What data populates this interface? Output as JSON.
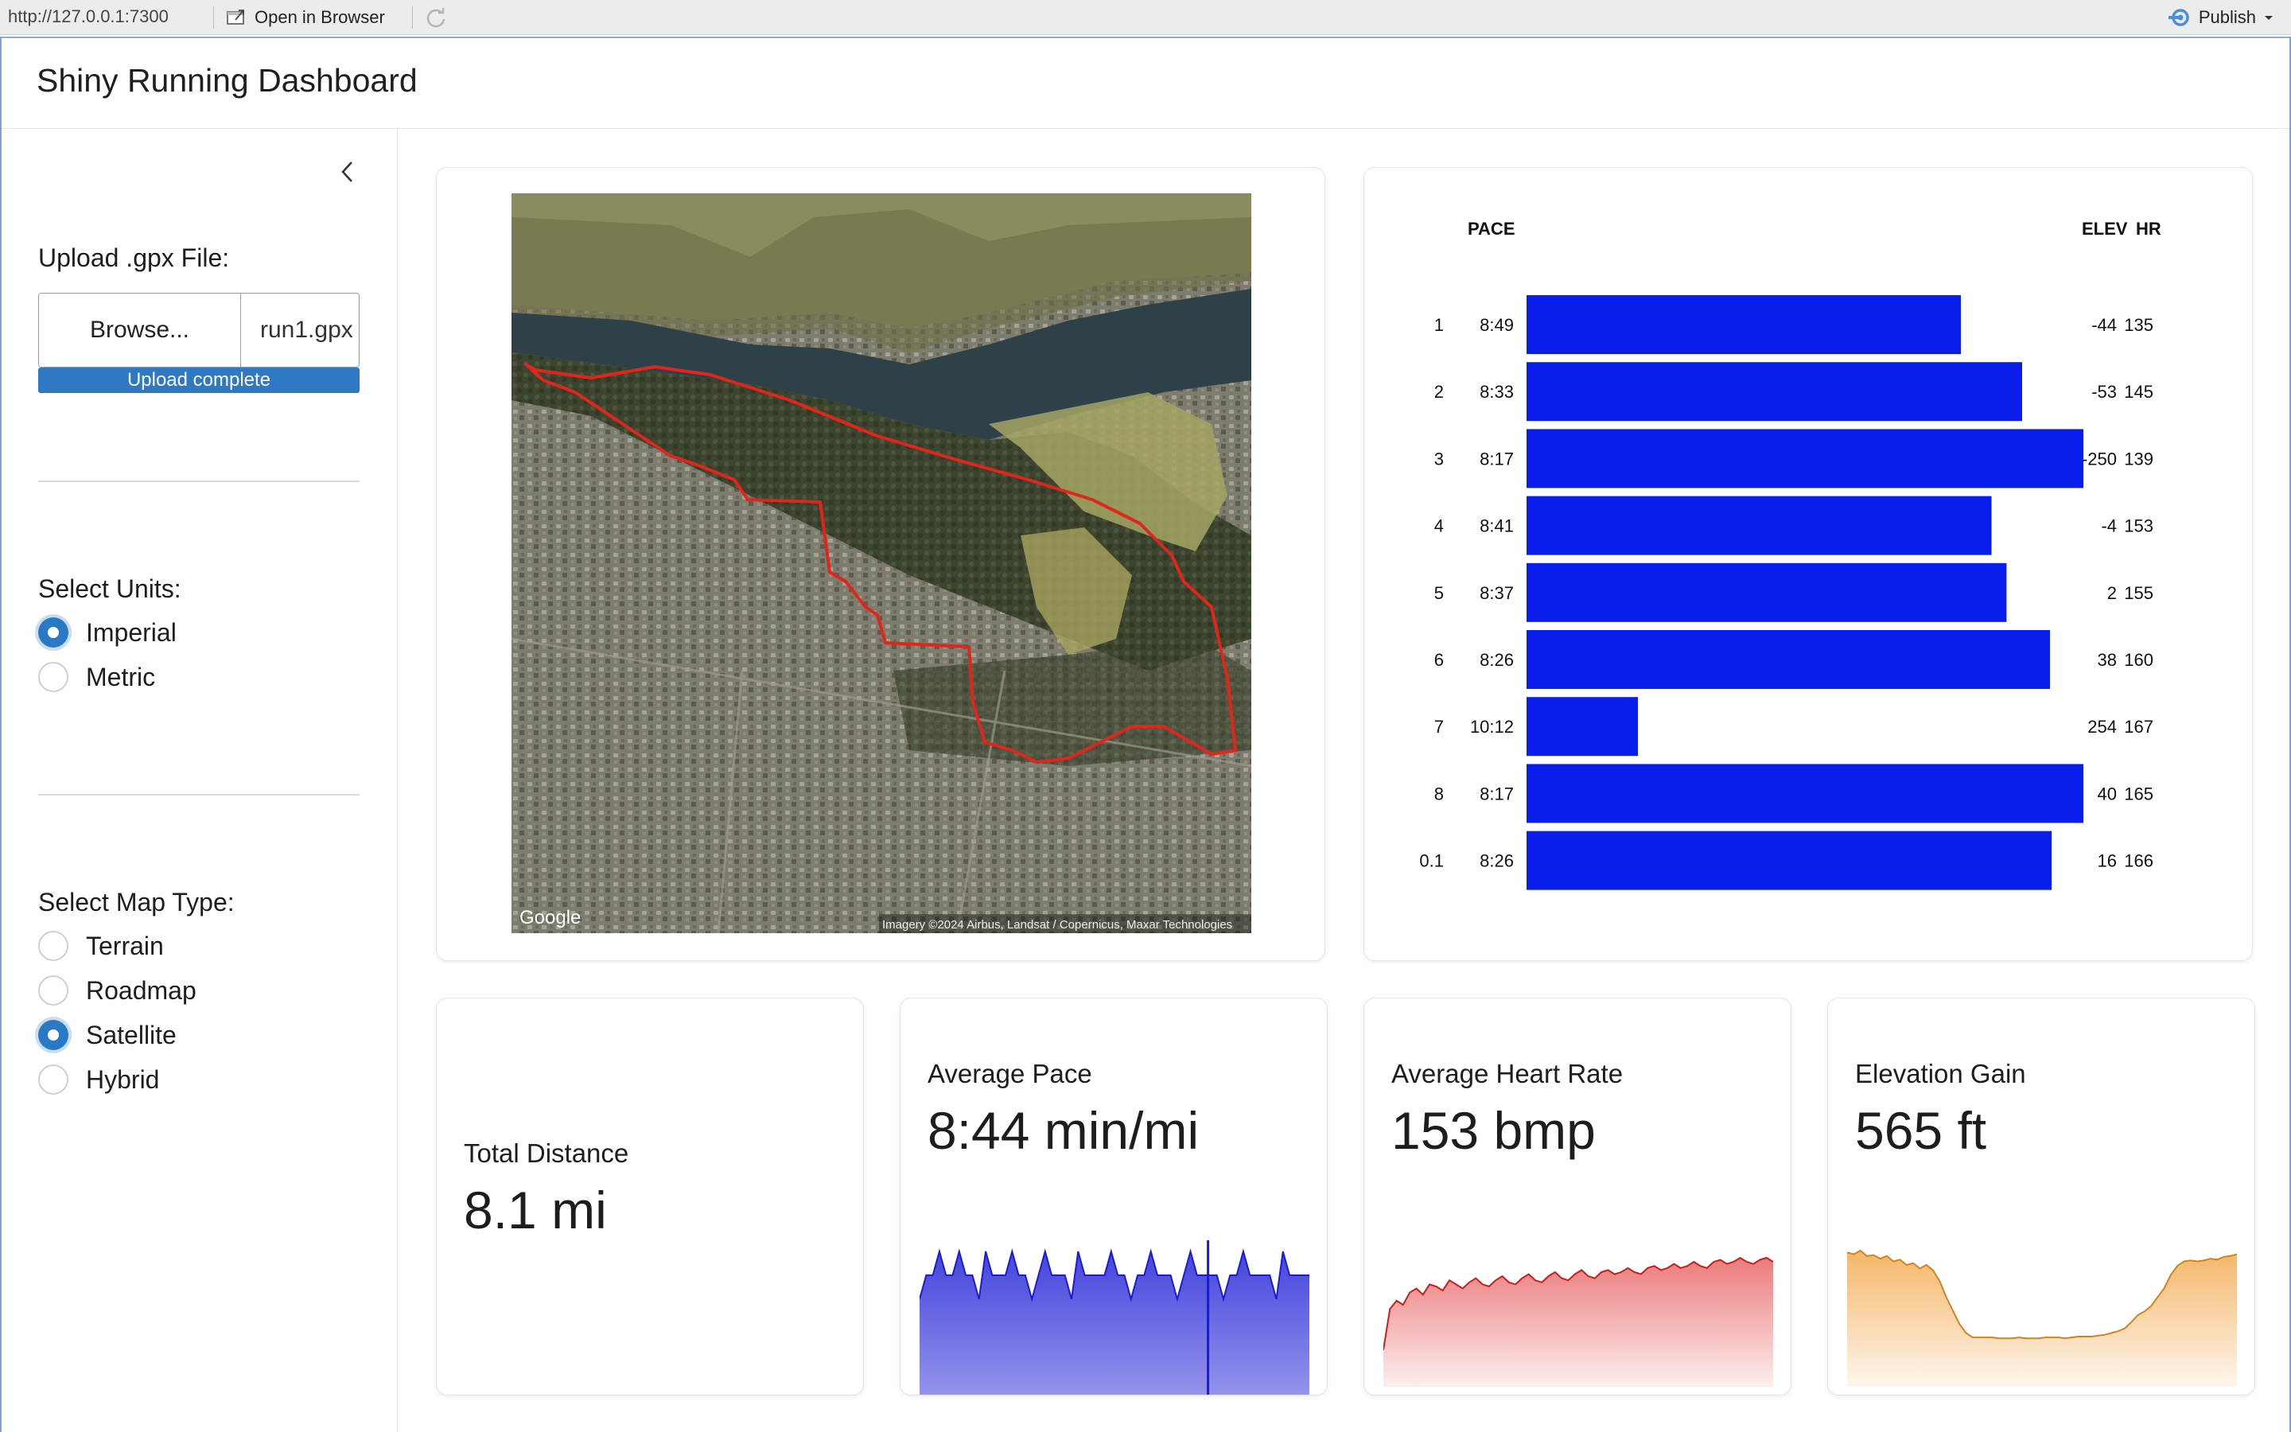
{
  "browser": {
    "url": "http://127.0.0.1:7300",
    "open_in_browser": "Open in Browser",
    "publish": "Publish"
  },
  "app": {
    "title": "Shiny Running Dashboard"
  },
  "sidebar": {
    "upload_label": "Upload .gpx File:",
    "browse_label": "Browse...",
    "file_name": "run1.gpx",
    "progress_text": "Upload complete",
    "units_label": "Select Units:",
    "units": [
      {
        "label": "Imperial",
        "selected": true
      },
      {
        "label": "Metric",
        "selected": false
      }
    ],
    "map_type_label": "Select Map Type:",
    "map_types": [
      {
        "label": "Terrain",
        "selected": false
      },
      {
        "label": "Roadmap",
        "selected": false
      },
      {
        "label": "Satellite",
        "selected": true
      },
      {
        "label": "Hybrid",
        "selected": false
      }
    ]
  },
  "map": {
    "google_logo": "Google",
    "attribution": "Imagery ©2024 Airbus, Landsat / Copernicus, Maxar Technologies",
    "route_color": "#e0261b"
  },
  "chart_data": [
    {
      "type": "bar",
      "orientation": "horizontal",
      "column_headers": {
        "pace": "PACE",
        "elev": "ELEV",
        "hr": "HR"
      },
      "categories": [
        "1",
        "2",
        "3",
        "4",
        "5",
        "6",
        "7",
        "8",
        "0.1"
      ],
      "pace_labels": [
        "8:49",
        "8:33",
        "8:17",
        "8:41",
        "8:37",
        "8:26",
        "10:12",
        "8:17",
        "8:26"
      ],
      "values": [
        0.78,
        0.89,
        1.0,
        0.835,
        0.862,
        0.94,
        0.2,
        1.0,
        0.943
      ],
      "elev": [
        "-44",
        "-53",
        "-250",
        "-4",
        "2",
        "38",
        "254",
        "40",
        "16"
      ],
      "hr": [
        "135",
        "145",
        "139",
        "153",
        "155",
        "160",
        "167",
        "165",
        "166"
      ],
      "bar_color": "#0a1eeb"
    },
    {
      "type": "area",
      "series_label": "Average Pace",
      "color": "#3b3bdb",
      "values": [
        4,
        5,
        5,
        6,
        5,
        5,
        6,
        5,
        5,
        4,
        6,
        5,
        5,
        5,
        6,
        5,
        5,
        4,
        5,
        6,
        5,
        5,
        5,
        4,
        6,
        5,
        5,
        5,
        5,
        6,
        5,
        5,
        4,
        5,
        5,
        6,
        5,
        5,
        5,
        4,
        5,
        6,
        5,
        5,
        5,
        5,
        4,
        5,
        5,
        6,
        5,
        5,
        5,
        5,
        4,
        6,
        5,
        5,
        5,
        5
      ]
    },
    {
      "type": "area",
      "series_label": "Average Heart Rate",
      "color": "#e65a5a",
      "values": [
        118,
        138,
        142,
        140,
        146,
        148,
        145,
        150,
        149,
        147,
        152,
        150,
        148,
        151,
        153,
        150,
        149,
        152,
        154,
        151,
        150,
        153,
        155,
        152,
        151,
        154,
        156,
        153,
        152,
        155,
        157,
        154,
        153,
        156,
        157,
        155,
        156,
        158,
        156,
        155,
        158,
        159,
        157,
        158,
        160,
        158,
        159,
        161,
        159,
        158,
        161,
        162,
        160,
        161,
        163,
        161,
        160,
        162,
        163,
        161
      ]
    },
    {
      "type": "area",
      "series_label": "Elevation Gain",
      "color": "#f2a444",
      "values": [
        150,
        148,
        152,
        146,
        147,
        143,
        146,
        140,
        142,
        136,
        138,
        132,
        136,
        130,
        118,
        100,
        85,
        70,
        60,
        55,
        55,
        55,
        55,
        54,
        54,
        54,
        55,
        54,
        54,
        54,
        55,
        55,
        55,
        54,
        55,
        56,
        56,
        56,
        57,
        58,
        60,
        62,
        65,
        72,
        80,
        84,
        90,
        100,
        110,
        125,
        135,
        140,
        141,
        140,
        141,
        143,
        142,
        145,
        146,
        148
      ]
    }
  ],
  "stats": [
    {
      "label": "Total Distance",
      "value": "8.1 mi"
    },
    {
      "label": "Average Pace",
      "value": "8:44 min/mi"
    },
    {
      "label": "Average Heart Rate",
      "value": "153 bmp"
    },
    {
      "label": "Elevation Gain",
      "value": "565 ft"
    }
  ]
}
